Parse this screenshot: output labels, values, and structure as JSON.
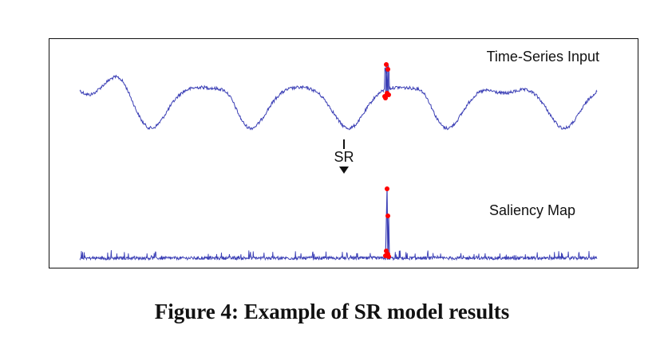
{
  "figure": {
    "caption": "Figure 4: Example of SR model results",
    "top_label": "Time-Series Input",
    "bottom_label": "Saliency Map",
    "arrow_label": "SR"
  },
  "chart_data": [
    {
      "type": "line",
      "title": "Time-Series Input",
      "series_color": "#3b3fb5",
      "anomaly_color": "#ff0000",
      "description_points": "periodic signal with ~5 cycles, anomaly spike near x≈0.6"
    },
    {
      "type": "line",
      "title": "Saliency Map",
      "series_color": "#3b3fb5",
      "anomaly_color": "#ff0000"
    }
  ]
}
